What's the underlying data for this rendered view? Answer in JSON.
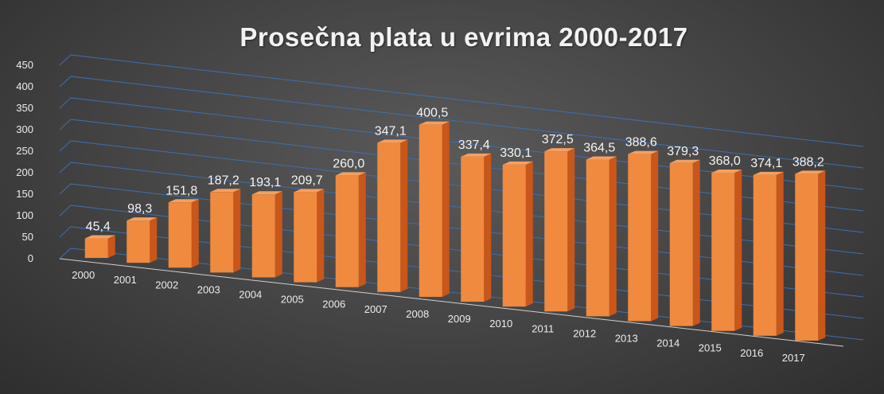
{
  "chart_data": {
    "type": "bar",
    "title": "Prosečna plata u evrima 2000-2017",
    "categories": [
      "2000",
      "2001",
      "2002",
      "2003",
      "2004",
      "2005",
      "2006",
      "2007",
      "2008",
      "2009",
      "2010",
      "2011",
      "2012",
      "2013",
      "2014",
      "2015",
      "2016",
      "2017"
    ],
    "values": [
      45.4,
      98.3,
      151.8,
      187.2,
      193.1,
      209.7,
      260.0,
      347.1,
      400.5,
      337.4,
      330.1,
      372.5,
      364.5,
      388.6,
      379.3,
      368.0,
      374.1,
      388.2
    ],
    "data_labels": [
      "45,4",
      "98,3",
      "151,8",
      "187,2",
      "193,1",
      "209,7",
      "260,0",
      "347,1",
      "400,5",
      "337,4",
      "330,1",
      "372,5",
      "364,5",
      "388,6",
      "379,3",
      "368,0",
      "374,1",
      "388,2"
    ],
    "y_ticks": [
      "0",
      "50",
      "100",
      "150",
      "200",
      "250",
      "300",
      "350",
      "400",
      "450"
    ],
    "ylim": [
      0,
      450
    ],
    "grid": true,
    "xlabel": "",
    "ylabel": "",
    "colors": {
      "bar_front": "#f08a3e",
      "bar_side": "#c9561a",
      "bar_top": "#f4a062",
      "grid": "#3d6fae"
    }
  }
}
